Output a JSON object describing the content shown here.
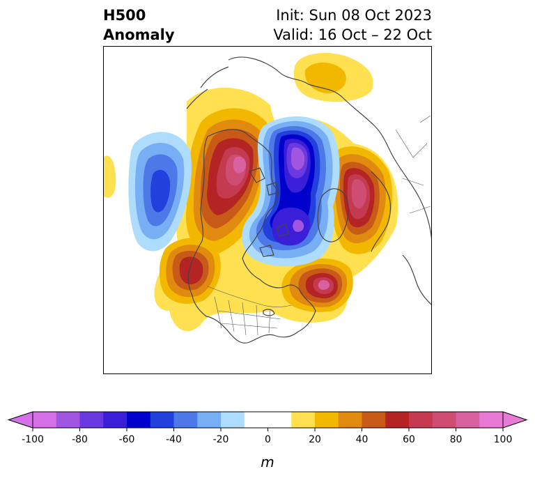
{
  "title": {
    "left_line1": "H500",
    "left_line2": "Anomaly",
    "init": "Init: Sun 08 Oct 2023",
    "valid": "Valid: 16 Oct – 22 Oct"
  },
  "colorbar": {
    "unit": "m",
    "min": -100,
    "max": 100,
    "step": 10,
    "extend": "both",
    "tick_values": [
      -100,
      -80,
      -60,
      -40,
      -20,
      0,
      20,
      40,
      60,
      80,
      100
    ],
    "tick_labels": [
      "-100",
      "-80",
      "-60",
      "-40",
      "-20",
      "0",
      "20",
      "40",
      "60",
      "80",
      "100"
    ],
    "colors": [
      "#d670e8",
      "#a056e0",
      "#6a3ae0",
      "#3a1ed8",
      "#0000cd",
      "#2240dc",
      "#4c78e8",
      "#78aef4",
      "#aedcfc",
      "#ffffff",
      "#ffffff",
      "#ffe050",
      "#f2b800",
      "#e08a10",
      "#c85a18",
      "#b42424",
      "#c43a50",
      "#cf4c72",
      "#d862a0",
      "#e87ad6"
    ]
  },
  "map": {
    "projection": "north-polar-stereographic",
    "region": "Northern Hemisphere (North America centered)",
    "anomaly_centers": [
      {
        "sign": "negative",
        "location": "North Pole / Arctic Ocean",
        "peak_m": -100
      },
      {
        "sign": "negative",
        "location": "Hudson Bay / Canadian Arctic",
        "peak_m": -90
      },
      {
        "sign": "negative",
        "location": "North Pacific",
        "peak_m": -50
      },
      {
        "sign": "positive",
        "location": "Eastern Siberia / Chukotka",
        "peak_m": 90
      },
      {
        "sign": "positive",
        "location": "Scandinavia / Northern Europe",
        "peak_m": 80
      },
      {
        "sign": "positive",
        "location": "Gulf of Alaska / Pacific NW",
        "peak_m": 60
      },
      {
        "sign": "positive",
        "location": "Labrador Sea / Newfoundland",
        "peak_m": 80
      }
    ]
  }
}
